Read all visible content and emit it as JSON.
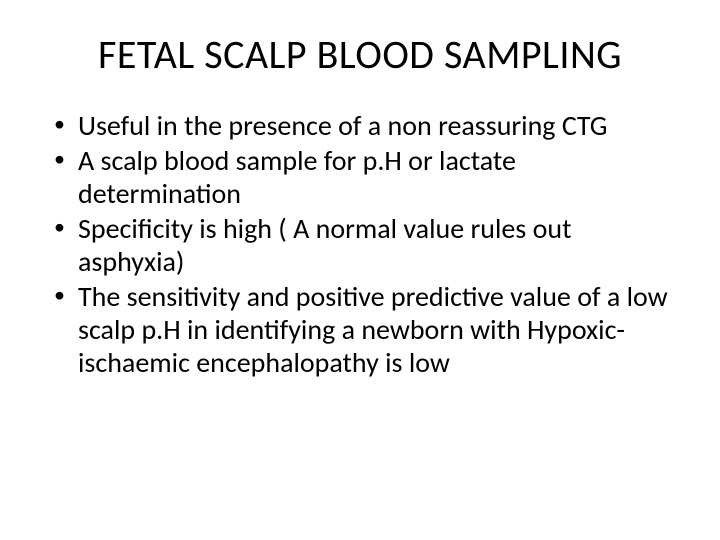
{
  "slide": {
    "title": "FETAL SCALP BLOOD SAMPLING",
    "bullets": [
      "Useful in the presence of a non reassuring CTG",
      "A scalp blood sample for p.H or lactate determination",
      "Specificity is high ( A normal value rules out asphyxia)",
      "The sensitivity and positive predictive value of a low scalp p.H in identifying a newborn with Hypoxic-ischaemic  encephalopathy is low"
    ],
    "colors": {
      "background": "#ffffff",
      "text": "#000000"
    },
    "typography": {
      "title_fontsize_pt": 40,
      "body_fontsize_pt": 28,
      "font_family": "Calibri"
    }
  }
}
